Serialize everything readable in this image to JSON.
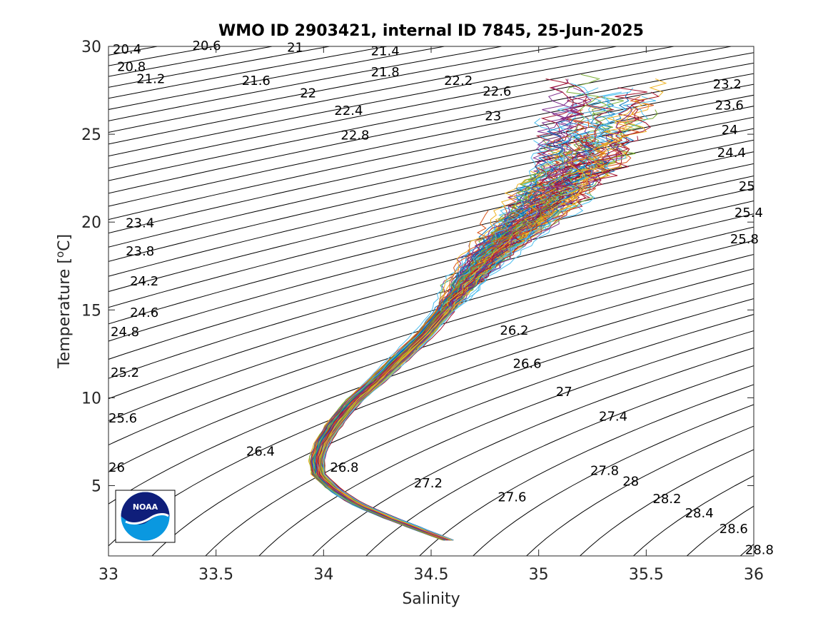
{
  "chart_data": {
    "type": "line",
    "title": "WMO ID 2903421, internal ID 7845, 25-Jun-2025",
    "xlabel": "Salinity",
    "ylabel": "Temperature [",
    "ylabel_sup": "o",
    "ylabel_suffix": "C]",
    "xlim": [
      33,
      36
    ],
    "ylim": [
      1,
      30
    ],
    "x_ticks": [
      {
        "value": 33,
        "label": "33"
      },
      {
        "value": 33.5,
        "label": "33.5"
      },
      {
        "value": 34,
        "label": "34"
      },
      {
        "value": 34.5,
        "label": "34.5"
      },
      {
        "value": 35,
        "label": "35"
      },
      {
        "value": 35.5,
        "label": "35.5"
      },
      {
        "value": 36,
        "label": "36"
      }
    ],
    "y_ticks": [
      {
        "value": 5,
        "label": "5"
      },
      {
        "value": 10,
        "label": "10"
      },
      {
        "value": 15,
        "label": "15"
      },
      {
        "value": 20,
        "label": "20"
      },
      {
        "value": 25,
        "label": "25"
      },
      {
        "value": 30,
        "label": "30"
      }
    ],
    "density_contours": {
      "from": 20.4,
      "to": 28.8,
      "step": 0.2,
      "labels": [
        {
          "label": "20.4",
          "s": 33.02,
          "t": 29.6
        },
        {
          "label": "20.6",
          "s": 33.39,
          "t": 29.8
        },
        {
          "label": "21",
          "s": 33.83,
          "t": 29.7
        },
        {
          "label": "21.4",
          "s": 34.22,
          "t": 29.5
        },
        {
          "label": "20.8",
          "s": 33.04,
          "t": 28.6
        },
        {
          "label": "21.8",
          "s": 34.22,
          "t": 28.3
        },
        {
          "label": "21.2",
          "s": 33.13,
          "t": 27.9
        },
        {
          "label": "22.2",
          "s": 34.56,
          "t": 27.8
        },
        {
          "label": "21.6",
          "s": 33.62,
          "t": 27.8
        },
        {
          "label": "22.6",
          "s": 34.74,
          "t": 27.2
        },
        {
          "label": "22",
          "s": 33.89,
          "t": 27.1
        },
        {
          "label": "22.4",
          "s": 34.05,
          "t": 26.1
        },
        {
          "label": "23",
          "s": 34.75,
          "t": 25.8
        },
        {
          "label": "22.8",
          "s": 34.08,
          "t": 24.7
        },
        {
          "label": "23.2",
          "s": 35.81,
          "t": 27.6
        },
        {
          "label": "23.6",
          "s": 35.82,
          "t": 26.4
        },
        {
          "label": "24",
          "s": 35.85,
          "t": 25.0
        },
        {
          "label": "24.4",
          "s": 35.83,
          "t": 23.7
        },
        {
          "label": "25",
          "s": 35.93,
          "t": 21.8
        },
        {
          "label": "25.4",
          "s": 35.91,
          "t": 20.3
        },
        {
          "label": "25.8",
          "s": 35.89,
          "t": 18.8
        },
        {
          "label": "23.4",
          "s": 33.08,
          "t": 19.7
        },
        {
          "label": "23.8",
          "s": 33.08,
          "t": 18.1
        },
        {
          "label": "24.2",
          "s": 33.1,
          "t": 16.4
        },
        {
          "label": "24.6",
          "s": 33.1,
          "t": 14.6
        },
        {
          "label": "24.8",
          "s": 33.01,
          "t": 13.5
        },
        {
          "label": "25.2",
          "s": 33.01,
          "t": 11.2
        },
        {
          "label": "25.6",
          "s": 33.0,
          "t": 8.6
        },
        {
          "label": "26",
          "s": 33.0,
          "t": 5.8
        },
        {
          "label": "26.2",
          "s": 34.82,
          "t": 13.6
        },
        {
          "label": "26.6",
          "s": 34.88,
          "t": 11.7
        },
        {
          "label": "27",
          "s": 35.08,
          "t": 10.1
        },
        {
          "label": "27.4",
          "s": 35.28,
          "t": 8.7
        },
        {
          "label": "26.4",
          "s": 33.64,
          "t": 6.7
        },
        {
          "label": "26.8",
          "s": 34.03,
          "t": 5.8
        },
        {
          "label": "27.8",
          "s": 35.24,
          "t": 5.6
        },
        {
          "label": "28",
          "s": 35.39,
          "t": 5.0
        },
        {
          "label": "27.2",
          "s": 34.42,
          "t": 4.9
        },
        {
          "label": "28.2",
          "s": 35.53,
          "t": 4.0
        },
        {
          "label": "27.6",
          "s": 34.81,
          "t": 4.1
        },
        {
          "label": "28.4",
          "s": 35.68,
          "t": 3.2
        },
        {
          "label": "28.6",
          "s": 35.84,
          "t": 2.3
        },
        {
          "label": "28.8",
          "s": 35.96,
          "t": 1.1
        }
      ]
    },
    "profile_backbone": {
      "s": [
        34.6,
        34.45,
        34.3,
        34.15,
        34.05,
        33.98,
        33.97,
        34.0,
        34.06,
        34.14,
        34.25,
        34.36,
        34.47,
        34.57,
        34.66,
        34.77,
        34.9,
        35.03,
        35.14,
        35.22
      ],
      "t": [
        1.8,
        2.5,
        3.2,
        4.0,
        4.8,
        5.6,
        6.5,
        7.5,
        8.6,
        9.8,
        11.0,
        12.3,
        13.6,
        15.0,
        16.5,
        18.0,
        19.5,
        21.0,
        22.5,
        23.8
      ]
    },
    "logo_text": "NOAA"
  }
}
